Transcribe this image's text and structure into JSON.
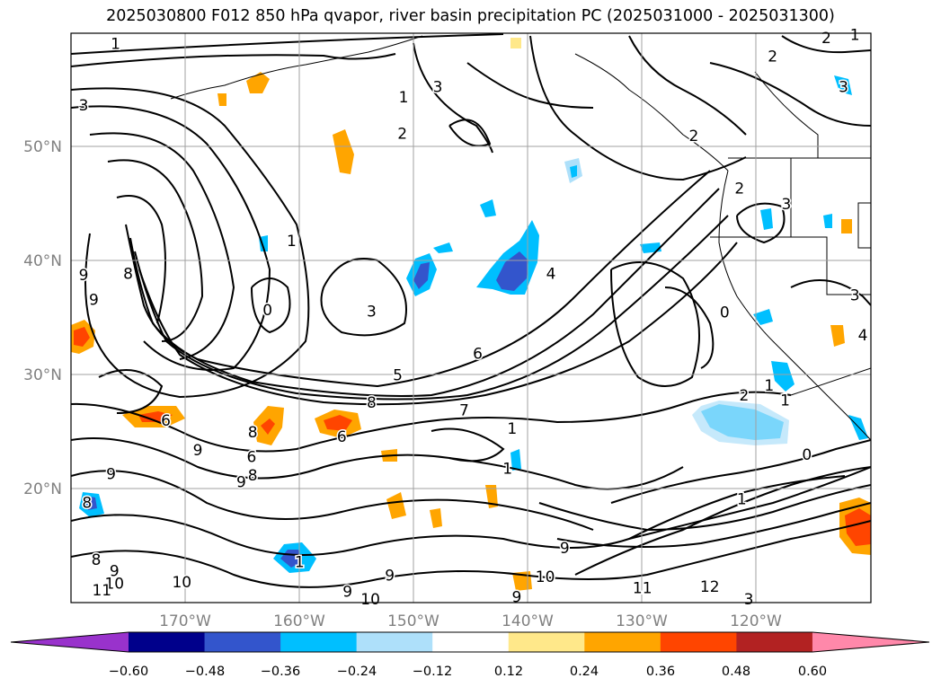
{
  "title": "2025030800 F012 850 hPa qvapor, river basin precipitation PC (2025031000 - 2025031300)",
  "map": {
    "lat_range": [
      10,
      60
    ],
    "lon_range": [
      -180,
      -110
    ],
    "lat_ticks": [
      "50°N",
      "40°N",
      "30°N",
      "20°N"
    ],
    "lon_ticks": [
      "170°W",
      "160°W",
      "150°W",
      "140°W",
      "130°W",
      "120°W"
    ],
    "grid": true,
    "tick_label_color": "#808080"
  },
  "colorbar": {
    "tick_labels": [
      "−0.60",
      "−0.48",
      "−0.36",
      "−0.24",
      "−0.12",
      "0.12",
      "0.24",
      "0.36",
      "0.48",
      "0.60"
    ],
    "colors": [
      "#9932cc",
      "#00008b",
      "#3355cc",
      "#00bfff",
      "#aee0fa",
      "#ffffff",
      "#ffe88a",
      "#ffa500",
      "#ff4500",
      "#b22222",
      "#ff88aa"
    ],
    "extend": "both"
  },
  "contour_labels": [
    {
      "text": "1",
      "lon": -176.1,
      "lat": 59.1
    },
    {
      "text": "2",
      "lon": -113.9,
      "lat": 59.6
    },
    {
      "text": "2",
      "lon": -118.6,
      "lat": 58.0
    },
    {
      "text": "1",
      "lon": -111.4,
      "lat": 59.9
    },
    {
      "text": "3",
      "lon": -147.9,
      "lat": 55.3
    },
    {
      "text": "1",
      "lon": -150.9,
      "lat": 54.4
    },
    {
      "text": "3",
      "lon": -112.4,
      "lat": 55.3
    },
    {
      "text": "3",
      "lon": -178.9,
      "lat": 53.7
    },
    {
      "text": "2",
      "lon": -151.0,
      "lat": 51.2
    },
    {
      "text": "2",
      "lon": -125.5,
      "lat": 51.0
    },
    {
      "text": "2",
      "lon": -121.5,
      "lat": 46.4
    },
    {
      "text": "3",
      "lon": -117.4,
      "lat": 45.0
    },
    {
      "text": "1",
      "lon": -160.7,
      "lat": 41.8
    },
    {
      "text": "9",
      "lon": -178.9,
      "lat": 38.8
    },
    {
      "text": "8",
      "lon": -175.0,
      "lat": 38.9
    },
    {
      "text": "4",
      "lon": -138.0,
      "lat": 38.9
    },
    {
      "text": "9",
      "lon": -178.0,
      "lat": 36.6
    },
    {
      "text": "0",
      "lon": -162.8,
      "lat": 35.7
    },
    {
      "text": "3",
      "lon": -153.7,
      "lat": 35.6
    },
    {
      "text": "0",
      "lon": -122.8,
      "lat": 35.5
    },
    {
      "text": "3",
      "lon": -111.4,
      "lat": 37.0
    },
    {
      "text": "4",
      "lon": -110.7,
      "lat": 33.5
    },
    {
      "text": "6",
      "lon": -144.4,
      "lat": 31.9
    },
    {
      "text": "5",
      "lon": -151.4,
      "lat": 30.0
    },
    {
      "text": "1",
      "lon": -118.9,
      "lat": 29.1
    },
    {
      "text": "1",
      "lon": -117.5,
      "lat": 27.8
    },
    {
      "text": "2",
      "lon": -121.1,
      "lat": 28.2
    },
    {
      "text": "8",
      "lon": -153.7,
      "lat": 27.6
    },
    {
      "text": "7",
      "lon": -145.6,
      "lat": 26.9
    },
    {
      "text": "6",
      "lon": -171.7,
      "lat": 26.0
    },
    {
      "text": "1",
      "lon": -141.4,
      "lat": 25.3
    },
    {
      "text": "8",
      "lon": -164.1,
      "lat": 25.0
    },
    {
      "text": "6",
      "lon": -156.3,
      "lat": 24.6
    },
    {
      "text": "9",
      "lon": -168.9,
      "lat": 23.4
    },
    {
      "text": "6",
      "lon": -164.2,
      "lat": 22.8
    },
    {
      "text": "0",
      "lon": -115.6,
      "lat": 23.0
    },
    {
      "text": "1",
      "lon": -141.8,
      "lat": 21.8
    },
    {
      "text": "9",
      "lon": -176.5,
      "lat": 21.3
    },
    {
      "text": "8",
      "lon": -164.1,
      "lat": 21.2
    },
    {
      "text": "9",
      "lon": -165.1,
      "lat": 20.6
    },
    {
      "text": "8",
      "lon": -178.6,
      "lat": 18.8
    },
    {
      "text": "1",
      "lon": -121.3,
      "lat": 19.1
    },
    {
      "text": "9",
      "lon": -136.8,
      "lat": 14.8
    },
    {
      "text": "8",
      "lon": -177.8,
      "lat": 13.8
    },
    {
      "text": "1",
      "lon": -160.0,
      "lat": 13.6
    },
    {
      "text": "9",
      "lon": -176.2,
      "lat": 12.8
    },
    {
      "text": "10",
      "lon": -170.3,
      "lat": 11.8
    },
    {
      "text": "10",
      "lon": -138.5,
      "lat": 12.3
    },
    {
      "text": "10",
      "lon": -176.2,
      "lat": 11.7
    },
    {
      "text": "9",
      "lon": -152.1,
      "lat": 12.4
    },
    {
      "text": "9",
      "lon": -155.8,
      "lat": 11.0
    },
    {
      "text": "11",
      "lon": -177.3,
      "lat": 11.1
    },
    {
      "text": "11",
      "lon": -130.0,
      "lat": 11.3
    },
    {
      "text": "12",
      "lon": -124.1,
      "lat": 11.4
    },
    {
      "text": "10",
      "lon": -153.8,
      "lat": 10.3
    },
    {
      "text": "9",
      "lon": -141.0,
      "lat": 10.5
    },
    {
      "text": "3",
      "lon": -120.7,
      "lat": 10.3
    }
  ]
}
